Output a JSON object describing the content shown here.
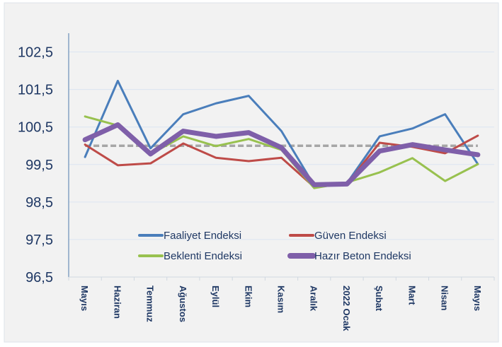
{
  "chart_data": {
    "type": "line",
    "title": "",
    "xlabel": "",
    "ylabel": "",
    "ylim": [
      96.5,
      103
    ],
    "yticks": [
      "96,5",
      "97,5",
      "98,5",
      "99,5",
      "100,5",
      "101,5",
      "102,5"
    ],
    "ytick_values": [
      96.5,
      97.5,
      98.5,
      99.5,
      100.5,
      101.5,
      102.5
    ],
    "grid": true,
    "legend_position": "bottom-inside",
    "categories": [
      "Mayıs",
      "Haziran",
      "Temmuz",
      "Ağustos",
      "Eylül",
      "Ekim",
      "Kasım",
      "Aralık",
      "2022 Ocak",
      "Şubat",
      "Mart",
      "Nisan",
      "Mayıs"
    ],
    "reference_line": {
      "value": 100,
      "style": "dashed",
      "color": "#a6a6a6"
    },
    "series": [
      {
        "name": "Faaliyet Endeksi",
        "color": "#4a7ebb",
        "values": [
          99.7,
          101.73,
          99.93,
          100.84,
          101.13,
          101.33,
          100.39,
          98.94,
          99.0,
          100.25,
          100.46,
          100.84,
          99.51
        ]
      },
      {
        "name": "Güven Endeksi",
        "color": "#be4b48",
        "values": [
          100.03,
          99.48,
          99.53,
          100.06,
          99.68,
          99.59,
          99.68,
          98.9,
          98.98,
          100.08,
          99.97,
          99.8,
          100.27
        ]
      },
      {
        "name": "Beklenti Endeksi",
        "color": "#98c14f",
        "values": [
          100.78,
          100.54,
          99.78,
          100.25,
          99.99,
          100.18,
          99.89,
          98.87,
          99.02,
          99.29,
          99.67,
          99.06,
          99.51
        ]
      },
      {
        "name": "Hazır Beton Endeksi",
        "color": "#7f5fa9",
        "values": [
          100.16,
          100.56,
          99.78,
          100.39,
          100.25,
          100.35,
          99.95,
          98.96,
          98.98,
          99.86,
          100.03,
          99.89,
          99.76
        ]
      }
    ]
  }
}
